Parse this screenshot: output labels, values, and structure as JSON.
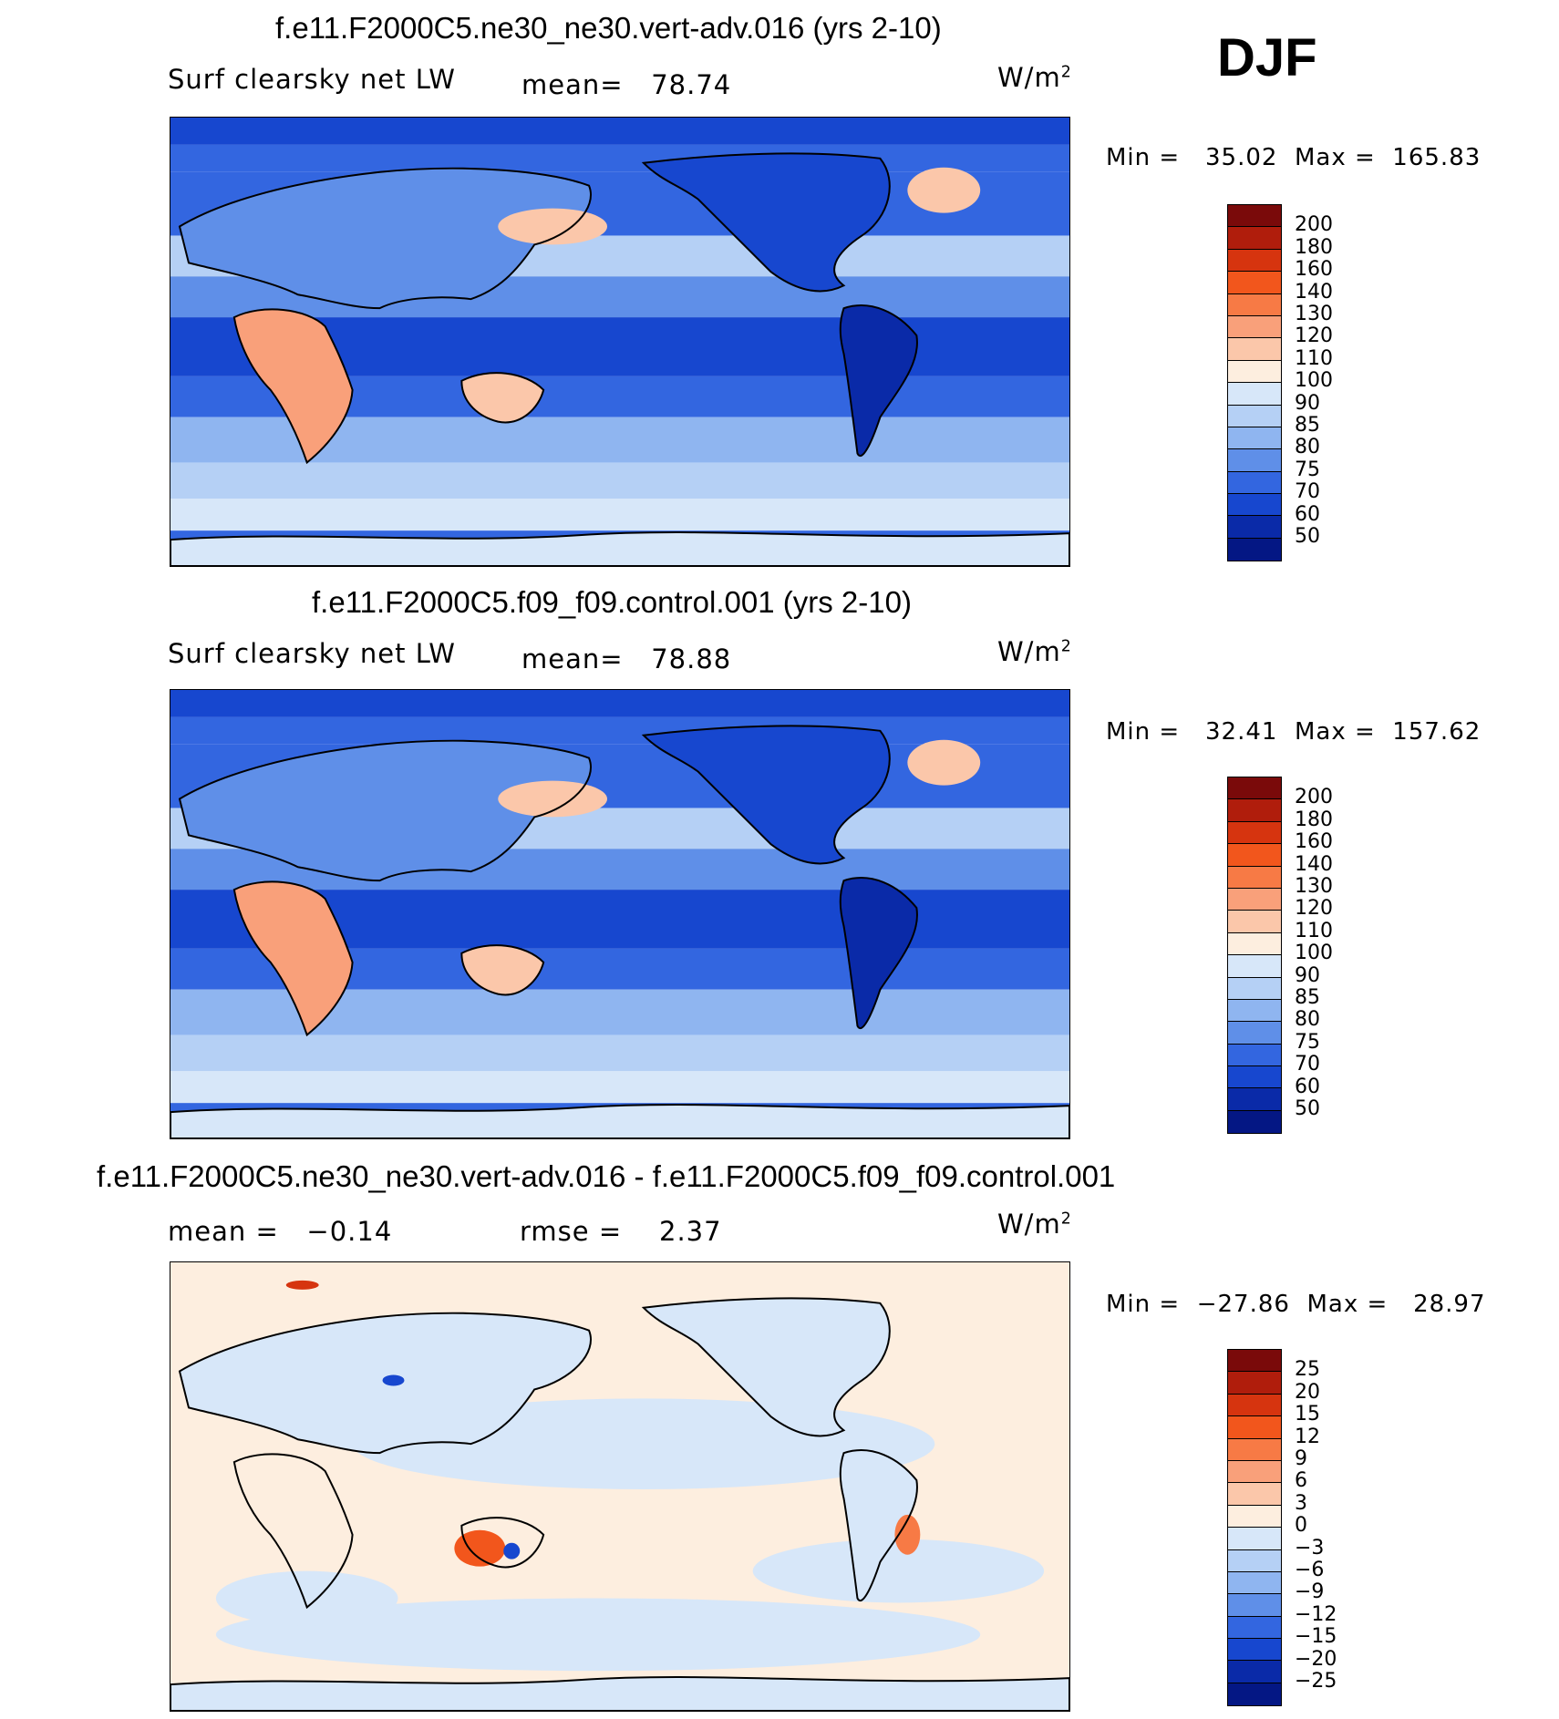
{
  "season": "DJF",
  "panels": [
    {
      "title": "f.e11.F2000C5.ne30_ne30.vert-adv.016 (yrs 2-10)",
      "variable": "Surf clearsky net LW",
      "stat_label": "mean=",
      "stat_value": "78.74",
      "units": "W/m",
      "units_exp": "2",
      "min_label": "Min =",
      "min_value": "35.02",
      "max_label": "Max =",
      "max_value": "165.83",
      "kind": "abs"
    },
    {
      "title": "f.e11.F2000C5.f09_f09.control.001 (yrs 2-10)",
      "variable": "Surf clearsky net LW",
      "stat_label": "mean=",
      "stat_value": "78.88",
      "units": "W/m",
      "units_exp": "2",
      "min_label": "Min =",
      "min_value": "32.41",
      "max_label": "Max =",
      "max_value": "157.62",
      "kind": "abs"
    },
    {
      "title": "f.e11.F2000C5.ne30_ne30.vert-adv.016 - f.e11.F2000C5.f09_f09.control.001",
      "stat_label": "mean =",
      "stat_value": "−0.14",
      "rmse_label": "rmse =",
      "rmse_value": "2.37",
      "units": "W/m",
      "units_exp": "2",
      "min_label": "Min =",
      "min_value": "−27.86",
      "max_label": "Max =",
      "max_value": "28.97",
      "kind": "diff"
    }
  ],
  "colorbar_abs": {
    "labels": [
      "200",
      "180",
      "160",
      "140",
      "130",
      "120",
      "110",
      "100",
      "90",
      "85",
      "80",
      "75",
      "70",
      "60",
      "50"
    ],
    "colors": [
      "#7a0a0a",
      "#b01d0c",
      "#d6340f",
      "#f2561c",
      "#f77a45",
      "#f9a07a",
      "#fbc7aa",
      "#fdeedf",
      "#d7e7f9",
      "#b5d0f5",
      "#8fb5f0",
      "#5f8fe8",
      "#3366e0",
      "#1747cf",
      "#0a2aa8",
      "#041784"
    ]
  },
  "colorbar_diff": {
    "labels": [
      "25",
      "20",
      "15",
      "12",
      "9",
      "6",
      "3",
      "0",
      "−3",
      "−6",
      "−9",
      "−12",
      "−15",
      "−20",
      "−25"
    ],
    "colors": [
      "#7a0a0a",
      "#b01d0c",
      "#d6340f",
      "#f2561c",
      "#f77a45",
      "#f9a07a",
      "#fbc7aa",
      "#fdeedf",
      "#d7e7f9",
      "#b5d0f5",
      "#8fb5f0",
      "#5f8fe8",
      "#3366e0",
      "#1747cf",
      "#0a2aa8",
      "#041784"
    ]
  }
}
